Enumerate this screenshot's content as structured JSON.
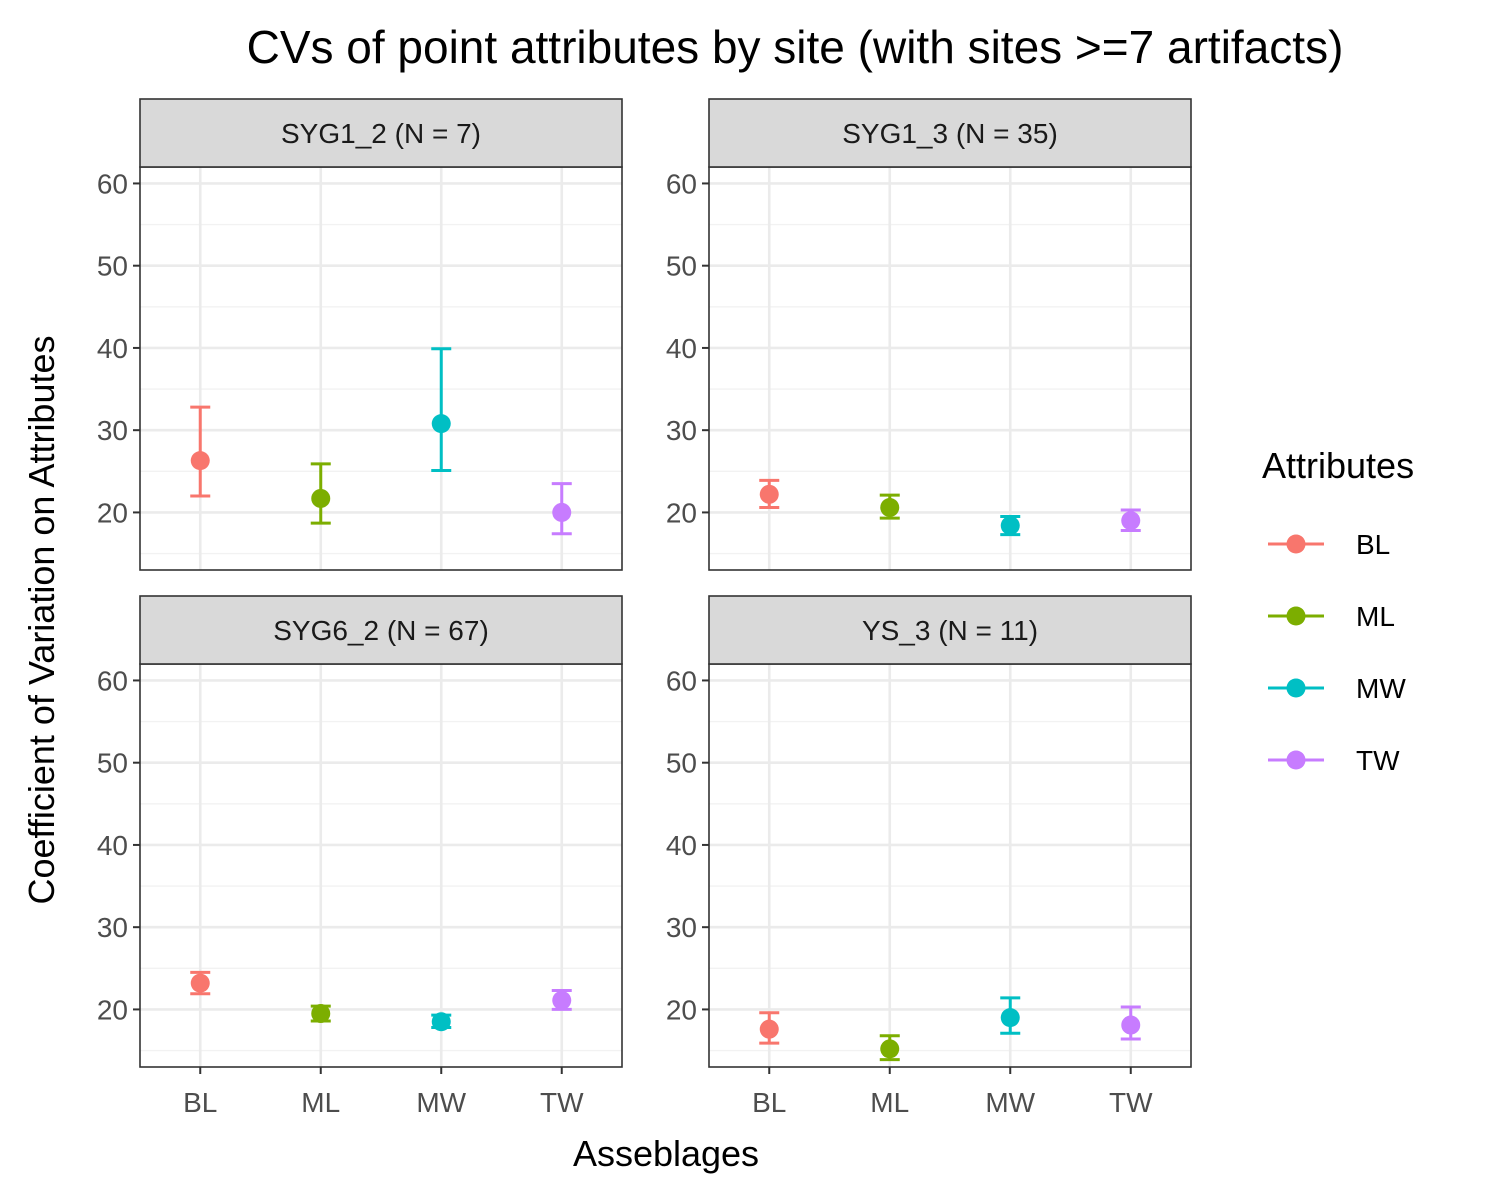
{
  "chart_data": {
    "type": "scatter",
    "title": "CVs of point attributes by site (with sites >=7 artifacts)",
    "xlabel": "Asseblages",
    "ylabel": "Coefficient of Variation on Attributes",
    "categories": [
      "BL",
      "ML",
      "MW",
      "TW"
    ],
    "y_ticks": [
      20,
      30,
      40,
      50,
      60
    ],
    "ylim": [
      13,
      62
    ],
    "grid": true,
    "legend": {
      "title": "Attributes",
      "position": "right",
      "entries": [
        {
          "label": "BL",
          "color": "#F8766D"
        },
        {
          "label": "ML",
          "color": "#7CAE00"
        },
        {
          "label": "MW",
          "color": "#00BFC4"
        },
        {
          "label": "TW",
          "color": "#C77CFF"
        }
      ]
    },
    "panels": [
      {
        "label": "SYG1_2 (N = 7)",
        "points": [
          {
            "x": "BL",
            "y": 26.3,
            "ymin": 22.0,
            "ymax": 32.8
          },
          {
            "x": "ML",
            "y": 21.7,
            "ymin": 18.7,
            "ymax": 25.9
          },
          {
            "x": "MW",
            "y": 30.8,
            "ymin": 25.1,
            "ymax": 39.9
          },
          {
            "x": "TW",
            "y": 20.0,
            "ymin": 17.4,
            "ymax": 23.5
          }
        ]
      },
      {
        "label": "SYG1_3 (N = 35)",
        "points": [
          {
            "x": "BL",
            "y": 22.2,
            "ymin": 20.6,
            "ymax": 23.9
          },
          {
            "x": "ML",
            "y": 20.6,
            "ymin": 19.3,
            "ymax": 22.1
          },
          {
            "x": "MW",
            "y": 18.4,
            "ymin": 17.3,
            "ymax": 19.5
          },
          {
            "x": "TW",
            "y": 19.0,
            "ymin": 17.8,
            "ymax": 20.3
          }
        ]
      },
      {
        "label": "SYG6_2 (N = 67)",
        "points": [
          {
            "x": "BL",
            "y": 23.2,
            "ymin": 21.9,
            "ymax": 24.5
          },
          {
            "x": "ML",
            "y": 19.5,
            "ymin": 18.6,
            "ymax": 20.4
          },
          {
            "x": "MW",
            "y": 18.5,
            "ymin": 17.8,
            "ymax": 19.3
          },
          {
            "x": "TW",
            "y": 21.1,
            "ymin": 20.0,
            "ymax": 22.3
          }
        ]
      },
      {
        "label": "YS_3 (N = 11)",
        "points": [
          {
            "x": "BL",
            "y": 17.6,
            "ymin": 15.9,
            "ymax": 19.6
          },
          {
            "x": "ML",
            "y": 15.2,
            "ymin": 13.9,
            "ymax": 16.8
          },
          {
            "x": "MW",
            "y": 19.0,
            "ymin": 17.1,
            "ymax": 21.4
          },
          {
            "x": "TW",
            "y": 18.1,
            "ymin": 16.4,
            "ymax": 20.3
          }
        ]
      }
    ]
  }
}
